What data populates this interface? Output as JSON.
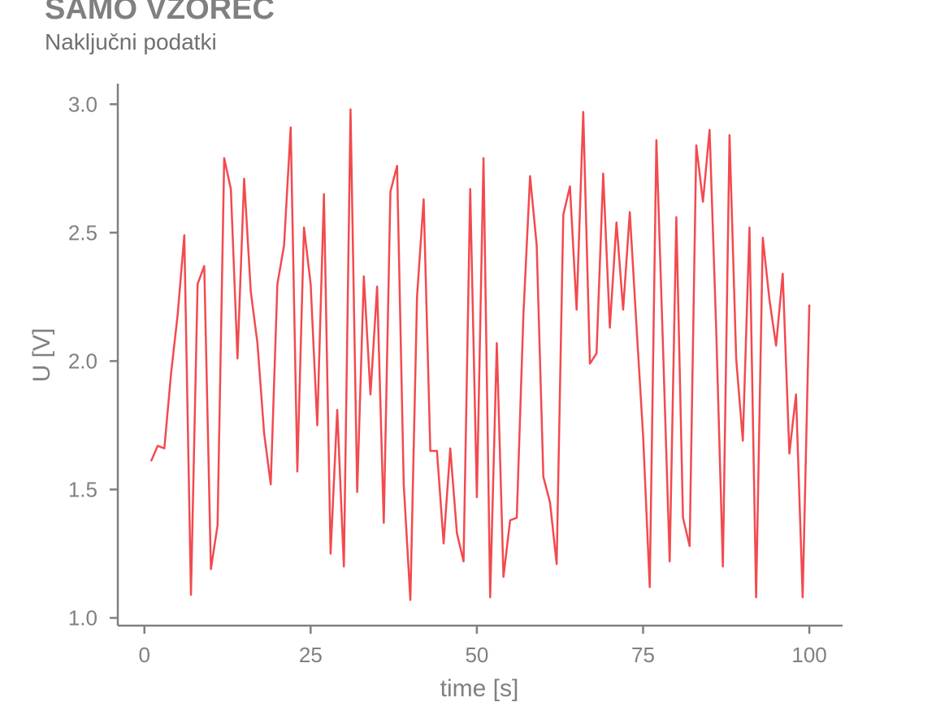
{
  "title": "SAMO VZOREC",
  "subtitle": "Naključni podatki",
  "colors": {
    "line": "#f24a4f",
    "axis": "#808080",
    "text": "#808080"
  },
  "chart_data": {
    "type": "line",
    "title": "SAMO VZOREC",
    "subtitle": "Naključni podatki",
    "xlabel": "time [s]",
    "ylabel": "U [V]",
    "xlim": [
      -4,
      105
    ],
    "ylim": [
      0.97,
      3.08
    ],
    "xticks": [
      0,
      25,
      50,
      75,
      100
    ],
    "yticks": [
      1.0,
      1.5,
      2.0,
      2.5,
      3.0
    ],
    "ytick_labels": [
      "1.0",
      "1.5",
      "2.0",
      "2.5",
      "3.0"
    ],
    "grid": false,
    "legend": false,
    "series": [
      {
        "x": [
          1,
          2,
          3,
          4,
          5,
          6,
          7,
          8,
          9,
          10,
          11,
          12,
          13,
          14,
          15,
          16,
          17,
          18,
          19,
          20,
          21,
          22,
          23,
          24,
          25,
          26,
          27,
          28,
          29,
          30,
          31,
          32,
          33,
          34,
          35,
          36,
          37,
          38,
          39,
          40,
          41,
          42,
          43,
          44,
          45,
          46,
          47,
          48,
          49,
          50,
          51,
          52,
          53,
          54,
          55,
          56,
          57,
          58,
          59,
          60,
          61,
          62,
          63,
          64,
          65,
          66,
          67,
          68,
          69,
          70,
          71,
          72,
          73,
          74,
          75,
          76,
          77,
          78,
          79,
          80,
          81,
          82,
          83,
          84,
          85,
          86,
          87,
          88,
          89,
          90,
          91,
          92,
          93,
          94,
          95,
          96,
          97,
          98,
          99,
          100
        ],
        "y": [
          1.61,
          1.67,
          1.66,
          1.95,
          2.18,
          2.49,
          1.09,
          2.3,
          2.37,
          1.19,
          1.36,
          2.79,
          2.67,
          2.01,
          2.71,
          2.27,
          2.07,
          1.72,
          1.52,
          2.3,
          2.45,
          2.91,
          1.57,
          2.52,
          2.3,
          1.75,
          2.65,
          1.25,
          1.81,
          1.2,
          2.98,
          1.49,
          2.33,
          1.87,
          2.29,
          1.37,
          2.66,
          2.76,
          1.52,
          1.07,
          2.25,
          2.63,
          1.65,
          1.65,
          1.29,
          1.66,
          1.33,
          1.22,
          2.67,
          1.47,
          2.79,
          1.08,
          2.07,
          1.16,
          1.38,
          1.39,
          2.18,
          2.72,
          2.45,
          1.55,
          1.45,
          1.21,
          2.57,
          2.68,
          2.2,
          2.97,
          1.99,
          2.03,
          2.73,
          2.13,
          2.54,
          2.2,
          2.58,
          2.14,
          1.71,
          1.12,
          2.86,
          2.05,
          1.22,
          2.56,
          1.39,
          1.28,
          2.84,
          2.62,
          2.9,
          2.12,
          1.2,
          2.88,
          2.01,
          1.69,
          2.52,
          1.08,
          2.48,
          2.24,
          2.06,
          2.34,
          1.64,
          1.87,
          1.08,
          2.22
        ]
      }
    ]
  }
}
